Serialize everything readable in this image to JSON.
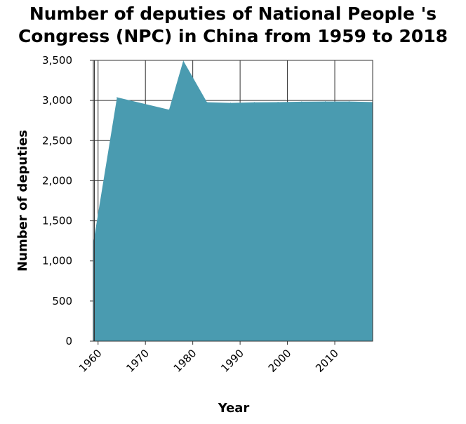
{
  "chart_data": {
    "type": "area",
    "title_lines": [
      "Number of deputies of National People 's",
      "Congress (NPC) in China from 1959 to 2018"
    ],
    "xlabel": "Year",
    "ylabel": "Number of deputies",
    "xlim": [
      1959,
      2018
    ],
    "ylim": [
      0,
      3500
    ],
    "x_ticks": [
      1960,
      1970,
      1980,
      1990,
      2000,
      2010
    ],
    "x_tick_labels": [
      "1960",
      "1970",
      "1980",
      "1990",
      "2000",
      "2010"
    ],
    "y_ticks": [
      0,
      500,
      1000,
      1500,
      2000,
      2500,
      3000,
      3500
    ],
    "y_tick_labels": [
      "0",
      "500",
      "1,000",
      "1,500",
      "2,000",
      "2,500",
      "3,000",
      "3,500"
    ],
    "grid": true,
    "color": "#4a9bb0",
    "series": [
      {
        "x": [
          1959,
          1964,
          1975,
          1978,
          1983,
          1988,
          1993,
          1998,
          2003,
          2008,
          2013,
          2018
        ],
        "values": [
          1226,
          3040,
          2885,
          3497,
          2978,
          2970,
          2977,
          2979,
          2985,
          2987,
          2987,
          2980
        ]
      }
    ]
  }
}
